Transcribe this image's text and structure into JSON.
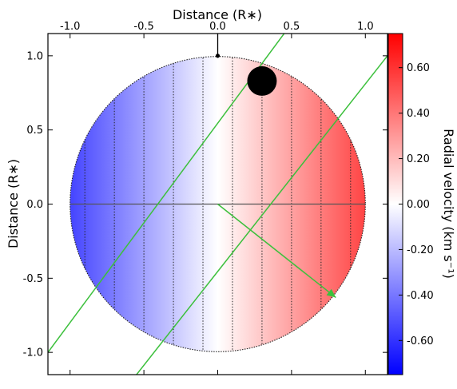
{
  "chart_data": {
    "type": "heatmap",
    "title": "",
    "xlabel": "Distance (R∗)",
    "ylabel": "Distance (R∗)",
    "xlim": [
      -1.15,
      1.15
    ],
    "ylim": [
      -1.15,
      1.15
    ],
    "x_ticks": [
      -1.0,
      -0.5,
      0.0,
      0.5,
      1.0
    ],
    "x_tick_labels": [
      "-1.0",
      "-0.5",
      "0.0",
      "0.5",
      "1.0"
    ],
    "y_ticks": [
      1.0,
      0.5,
      0.0,
      -0.5,
      -1.0
    ],
    "y_tick_labels": [
      "1.0",
      "0.5",
      "0.0",
      "-0.5",
      "-1.0"
    ],
    "stellar_disk": {
      "center": [
        0.0,
        0.0
      ],
      "radius": 1.0,
      "velocity_gradient": "linear in x, blue (negative) to red (positive)",
      "velocity_range": [
        -0.55,
        0.55
      ]
    },
    "velocity_strip_boundaries_x": [
      -0.9,
      -0.7,
      -0.5,
      -0.3,
      -0.1,
      0.1,
      0.3,
      0.5,
      0.7,
      0.9
    ],
    "horizontal_line_y": 0.0,
    "stellar_axis_arrow": {
      "from": [
        0.0,
        1.0
      ],
      "to": [
        0.0,
        1.15
      ]
    },
    "planet": {
      "x": 0.3,
      "y": 0.83,
      "radius": 0.1
    },
    "transit_chord_lines": [
      {
        "points": [
          [
            -1.15,
            -1.0
          ],
          [
            0.45,
            1.15
          ]
        ]
      },
      {
        "points": [
          [
            -0.55,
            -1.15
          ],
          [
            1.15,
            1.0
          ]
        ]
      }
    ],
    "orbit_arrow": {
      "from": [
        0.0,
        0.0
      ],
      "to": [
        0.8,
        -0.63
      ]
    },
    "colorbar": {
      "label": "Radial velocity (km s⁻¹)",
      "min": -0.75,
      "max": 0.75,
      "colormap": "bwr",
      "ticks": [
        0.6,
        0.4,
        0.2,
        0.0,
        -0.2,
        -0.4,
        -0.6
      ],
      "tick_labels": [
        "0.60",
        "0.40",
        "0.20",
        "0.00",
        "-0.20",
        "-0.40",
        "-0.60"
      ]
    },
    "colors": {
      "blue": "#0000ff",
      "white": "#ffffff",
      "red": "#ff0000",
      "line_green": "#3cc03c",
      "axis": "#000000",
      "grid_dark": "#222222"
    }
  }
}
